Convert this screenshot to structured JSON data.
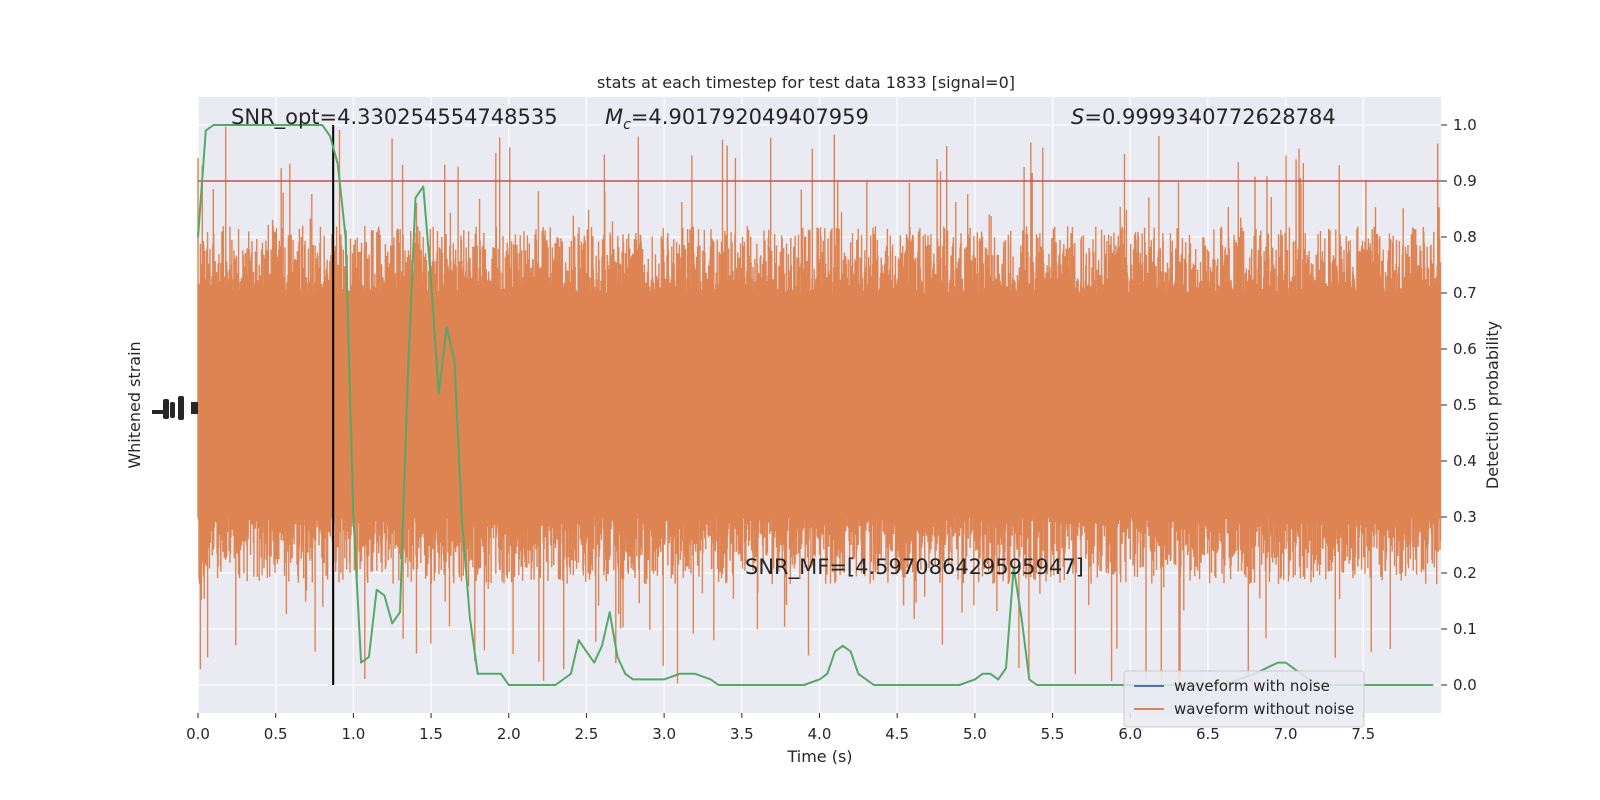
{
  "chart_data": {
    "type": "line",
    "title": "stats at each timestep for test data 1833 [signal=0]",
    "xlabel": "Time (s)",
    "ylabel_left": "Whitened strain",
    "ylabel_right": "Detection probability",
    "xlim": [
      0.0,
      8.0
    ],
    "ylim_right": [
      -0.05,
      1.05
    ],
    "x_ticks": [
      "0.0",
      "0.5",
      "1.0",
      "1.5",
      "2.0",
      "2.5",
      "3.0",
      "3.5",
      "4.0",
      "4.5",
      "5.0",
      "5.5",
      "6.0",
      "6.5",
      "7.0",
      "7.5"
    ],
    "x_tick_values": [
      0.0,
      0.5,
      1.0,
      1.5,
      2.0,
      2.5,
      3.0,
      3.5,
      4.0,
      4.5,
      5.0,
      5.5,
      6.0,
      6.5,
      7.0,
      7.5
    ],
    "y_right_ticks": [
      "0.0",
      "0.1",
      "0.2",
      "0.3",
      "0.4",
      "0.5",
      "0.6",
      "0.7",
      "0.8",
      "0.9",
      "1.0"
    ],
    "y_right_tick_values": [
      0.0,
      0.1,
      0.2,
      0.3,
      0.4,
      0.5,
      0.6,
      0.7,
      0.8,
      0.9,
      1.0
    ],
    "grid": true,
    "legend_position": "lower-right",
    "annotations": {
      "snr_opt": "SNR_opt=4.330254554748535",
      "mc_symbol": "M",
      "mc_sub": "c",
      "mc_value": "=4.901792049407959",
      "s_symbol": "S",
      "s_value": "=0.9999340772628784",
      "snr_mf": "SNR_MF=[4.597086429595947]"
    },
    "threshold": {
      "value": 0.9,
      "color": "#c44e52"
    },
    "marker_time": 0.87,
    "series": [
      {
        "name": "waveform with noise",
        "color": "#4c72b0",
        "kind": "legend-only"
      },
      {
        "name": "waveform without noise",
        "color": "#dd8452",
        "kind": "noise-band",
        "band_core": [
          0.3,
          0.7
        ],
        "peak_max": 1.0,
        "trough_min": 0.0
      },
      {
        "color": "#55a868",
        "kind": "probability",
        "x": [
          0.0,
          0.05,
          0.1,
          0.15,
          0.2,
          0.3,
          0.4,
          0.5,
          0.6,
          0.7,
          0.75,
          0.8,
          0.85,
          0.9,
          0.95,
          1.0,
          1.05,
          1.1,
          1.15,
          1.2,
          1.25,
          1.3,
          1.35,
          1.4,
          1.45,
          1.5,
          1.55,
          1.6,
          1.65,
          1.7,
          1.75,
          1.8,
          1.85,
          1.9,
          1.95,
          2.0,
          2.05,
          2.1,
          2.2,
          2.3,
          2.4,
          2.45,
          2.5,
          2.55,
          2.6,
          2.65,
          2.7,
          2.75,
          2.8,
          2.9,
          3.0,
          3.1,
          3.2,
          3.3,
          3.35,
          3.4,
          3.5,
          3.6,
          3.7,
          3.8,
          3.9,
          4.0,
          4.05,
          4.1,
          4.15,
          4.2,
          4.25,
          4.3,
          4.35,
          4.4,
          4.5,
          4.6,
          4.7,
          4.8,
          4.9,
          5.0,
          5.05,
          5.1,
          5.15,
          5.2,
          5.25,
          5.3,
          5.35,
          5.4,
          5.45,
          5.5,
          5.55,
          5.6,
          5.7,
          5.8,
          6.0,
          6.2,
          6.4,
          6.6,
          6.8,
          6.95,
          7.0,
          7.05,
          7.1,
          7.15,
          7.2,
          7.4,
          7.6,
          7.8,
          7.95
        ],
        "y": [
          0.8,
          0.99,
          1.0,
          1.0,
          1.0,
          1.0,
          1.0,
          1.0,
          1.0,
          1.0,
          1.0,
          1.0,
          0.98,
          0.93,
          0.8,
          0.3,
          0.04,
          0.05,
          0.17,
          0.16,
          0.11,
          0.13,
          0.55,
          0.87,
          0.89,
          0.72,
          0.52,
          0.64,
          0.58,
          0.29,
          0.12,
          0.02,
          0.02,
          0.02,
          0.02,
          0.0,
          0.0,
          0.0,
          0.0,
          0.0,
          0.02,
          0.08,
          0.06,
          0.04,
          0.07,
          0.13,
          0.05,
          0.02,
          0.01,
          0.01,
          0.01,
          0.02,
          0.02,
          0.01,
          0.0,
          0.0,
          0.0,
          0.0,
          0.0,
          0.0,
          0.0,
          0.01,
          0.02,
          0.06,
          0.07,
          0.06,
          0.02,
          0.01,
          0.0,
          0.0,
          0.0,
          0.0,
          0.0,
          0.0,
          0.0,
          0.01,
          0.02,
          0.02,
          0.01,
          0.03,
          0.21,
          0.12,
          0.01,
          0.0,
          0.0,
          0.0,
          0.0,
          0.0,
          0.0,
          0.0,
          0.0,
          0.0,
          0.0,
          0.0,
          0.02,
          0.04,
          0.04,
          0.03,
          0.02,
          0.01,
          0.0,
          0.0,
          0.0,
          0.0,
          0.0
        ]
      }
    ]
  }
}
